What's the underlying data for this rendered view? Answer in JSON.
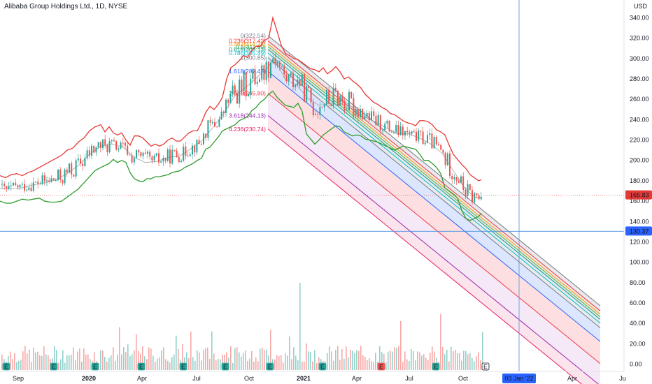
{
  "header": {
    "title": "Alibaba Group Holdings Ltd., 1D, NYSE"
  },
  "colors": {
    "price_up": "#26a69a",
    "price_down": "#ef5350",
    "upper_band": "#e53935",
    "lower_band": "#2e9b2e",
    "mid_band": "#9e9e9e",
    "crosshair": "#4a90e2",
    "price_badge": "#e53935",
    "cross_badge": "#2962ff"
  },
  "chart_data": {
    "type": "candlestick",
    "currency": "USD",
    "y_axis": {
      "range": [
        0,
        345
      ],
      "ticks": [
        "340.00",
        "320.00",
        "300.00",
        "280.00",
        "260.00",
        "240.00",
        "220.00",
        "200.00",
        "180.00",
        "160.00",
        "140.00",
        "120.00",
        "100.00",
        "80.00",
        "60.00",
        "40.00",
        "20.00",
        "0.00"
      ],
      "tick_values": [
        340,
        320,
        300,
        280,
        260,
        240,
        220,
        200,
        180,
        160,
        140,
        120,
        100,
        80,
        60,
        40,
        20,
        0
      ]
    },
    "x_axis": {
      "ticks": [
        {
          "label": "Sep",
          "bold": false
        },
        {
          "label": "2020",
          "bold": true
        },
        {
          "label": "Apr",
          "bold": false
        },
        {
          "label": "Jul",
          "bold": false
        },
        {
          "label": "Oct",
          "bold": false
        },
        {
          "label": "2021",
          "bold": true
        },
        {
          "label": "Apr",
          "bold": false
        },
        {
          "label": "Jul",
          "bold": false
        },
        {
          "label": "Oct",
          "bold": false
        },
        {
          "label": "Apr",
          "bold": false
        },
        {
          "label": "Ju",
          "bold": false
        }
      ]
    },
    "last_price": {
      "value": 165.83,
      "label": "165.83"
    },
    "crosshair": {
      "price": 130.37,
      "price_label": "130.37",
      "date_label": "03 Jan '22"
    },
    "fib_channel": {
      "start": {
        "date_index": 0,
        "price": 322.54
      },
      "end_date_index": 1,
      "levels": [
        {
          "ratio": "0",
          "price": 322.54,
          "label": "0(322.54)",
          "color": "#787b86"
        },
        {
          "ratio": "0.236",
          "price": 317.42,
          "label": "0.236(317.42)",
          "color": "#f23645"
        },
        {
          "ratio": "0.382",
          "price": 314.25,
          "label": "0.382(314.25)",
          "color": "#ff9800"
        },
        {
          "ratio": "0.5",
          "price": 311.69,
          "label": "0.5(311.69)",
          "color": "#4caf50"
        },
        {
          "ratio": "0.618",
          "price": 309.13,
          "label": "0.618(309.13)",
          "color": "#089981"
        },
        {
          "ratio": "0.786",
          "price": 305.49,
          "label": "0.786(305.49)",
          "color": "#00bcd4"
        },
        {
          "ratio": "1",
          "price": 300.85,
          "label": "1(300.85)",
          "color": "#787b86"
        },
        {
          "ratio": "1.618",
          "price": 287.47,
          "label": "1.618(287.47)",
          "color": "#2962ff"
        },
        {
          "ratio": "2.618",
          "price": 265.8,
          "label": "2.618(265.80)",
          "color": "#f23645"
        },
        {
          "ratio": "3.618",
          "price": 244.13,
          "label": "3.618(244.13)",
          "color": "#9c27b0"
        },
        {
          "ratio": "4.236",
          "price": 230.74,
          "label": "4.236(230.74)",
          "color": "#e91e63"
        }
      ]
    },
    "earnings_markers": [
      "E",
      "E",
      "E",
      "E",
      "E",
      "E",
      "E",
      "E",
      "E",
      "E",
      "E"
    ],
    "upper_band": [
      [
        0,
        185
      ],
      [
        8,
        183
      ],
      [
        16,
        186
      ],
      [
        24,
        187
      ],
      [
        32,
        185
      ],
      [
        40,
        188
      ],
      [
        48,
        190
      ],
      [
        56,
        193
      ],
      [
        64,
        196
      ],
      [
        72,
        199
      ],
      [
        80,
        202
      ],
      [
        88,
        205
      ],
      [
        96,
        210
      ],
      [
        104,
        212
      ],
      [
        112,
        218
      ],
      [
        120,
        222
      ],
      [
        128,
        229
      ],
      [
        136,
        233
      ],
      [
        144,
        235
      ],
      [
        150,
        228
      ],
      [
        156,
        233
      ],
      [
        162,
        227
      ],
      [
        168,
        225
      ],
      [
        174,
        227
      ],
      [
        180,
        220
      ],
      [
        186,
        215
      ],
      [
        192,
        224
      ],
      [
        198,
        224
      ],
      [
        204,
        222
      ],
      [
        210,
        218
      ],
      [
        216,
        214
      ],
      [
        222,
        216
      ],
      [
        228,
        214
      ],
      [
        234,
        216
      ],
      [
        240,
        220
      ],
      [
        246,
        222
      ],
      [
        252,
        219
      ],
      [
        258,
        219
      ],
      [
        264,
        223
      ],
      [
        270,
        227
      ],
      [
        276,
        229
      ],
      [
        282,
        229
      ],
      [
        288,
        237
      ],
      [
        294,
        247
      ],
      [
        300,
        253
      ],
      [
        306,
        250
      ],
      [
        312,
        255
      ],
      [
        318,
        262
      ],
      [
        324,
        280
      ],
      [
        330,
        291
      ],
      [
        336,
        294
      ],
      [
        342,
        298
      ],
      [
        348,
        303
      ],
      [
        354,
        301
      ],
      [
        360,
        308
      ],
      [
        366,
        312
      ],
      [
        372,
        312
      ],
      [
        378,
        318
      ],
      [
        384,
        320
      ],
      [
        390,
        340
      ],
      [
        396,
        327
      ],
      [
        402,
        313
      ],
      [
        408,
        305
      ],
      [
        414,
        303
      ],
      [
        420,
        300
      ],
      [
        426,
        299
      ],
      [
        432,
        296
      ],
      [
        438,
        293
      ],
      [
        444,
        290
      ],
      [
        450,
        289
      ],
      [
        456,
        287
      ],
      [
        462,
        291
      ],
      [
        468,
        285
      ],
      [
        474,
        288
      ],
      [
        480,
        292
      ],
      [
        486,
        287
      ],
      [
        492,
        280
      ],
      [
        498,
        282
      ],
      [
        504,
        278
      ],
      [
        510,
        275
      ],
      [
        516,
        271
      ],
      [
        522,
        265
      ],
      [
        528,
        261
      ],
      [
        534,
        257
      ],
      [
        540,
        255
      ],
      [
        546,
        252
      ],
      [
        552,
        250
      ],
      [
        558,
        246
      ],
      [
        564,
        245
      ],
      [
        570,
        242
      ],
      [
        576,
        239
      ],
      [
        582,
        237
      ],
      [
        588,
        236
      ],
      [
        594,
        234
      ],
      [
        600,
        239
      ],
      [
        606,
        239
      ],
      [
        612,
        238
      ],
      [
        618,
        235
      ],
      [
        624,
        230
      ],
      [
        630,
        228
      ],
      [
        636,
        225
      ],
      [
        642,
        215
      ],
      [
        648,
        206
      ],
      [
        654,
        201
      ],
      [
        660,
        196
      ],
      [
        666,
        192
      ],
      [
        672,
        186
      ],
      [
        678,
        183
      ],
      [
        684,
        180
      ],
      [
        688,
        181
      ]
    ],
    "lower_band": [
      [
        0,
        160
      ],
      [
        8,
        158
      ],
      [
        16,
        158
      ],
      [
        24,
        160
      ],
      [
        32,
        162
      ],
      [
        40,
        161
      ],
      [
        48,
        162
      ],
      [
        56,
        163
      ],
      [
        64,
        160
      ],
      [
        72,
        159
      ],
      [
        80,
        159
      ],
      [
        88,
        160
      ],
      [
        96,
        164
      ],
      [
        104,
        168
      ],
      [
        112,
        172
      ],
      [
        120,
        178
      ],
      [
        128,
        184
      ],
      [
        136,
        190
      ],
      [
        144,
        193
      ],
      [
        150,
        195
      ],
      [
        156,
        197
      ],
      [
        162,
        201
      ],
      [
        168,
        198
      ],
      [
        174,
        200
      ],
      [
        180,
        198
      ],
      [
        186,
        188
      ],
      [
        192,
        182
      ],
      [
        198,
        180
      ],
      [
        204,
        179
      ],
      [
        210,
        182
      ],
      [
        216,
        182
      ],
      [
        222,
        184
      ],
      [
        228,
        184
      ],
      [
        234,
        185
      ],
      [
        240,
        186
      ],
      [
        246,
        188
      ],
      [
        252,
        189
      ],
      [
        258,
        190
      ],
      [
        264,
        193
      ],
      [
        270,
        195
      ],
      [
        276,
        197
      ],
      [
        282,
        200
      ],
      [
        288,
        202
      ],
      [
        294,
        211
      ],
      [
        300,
        213
      ],
      [
        306,
        218
      ],
      [
        312,
        223
      ],
      [
        318,
        229
      ],
      [
        324,
        231
      ],
      [
        330,
        233
      ],
      [
        336,
        235
      ],
      [
        342,
        239
      ],
      [
        348,
        241
      ],
      [
        354,
        243
      ],
      [
        360,
        249
      ],
      [
        366,
        252
      ],
      [
        372,
        257
      ],
      [
        378,
        260
      ],
      [
        384,
        265
      ],
      [
        390,
        268
      ],
      [
        396,
        262
      ],
      [
        402,
        258
      ],
      [
        408,
        254
      ],
      [
        414,
        253
      ],
      [
        420,
        252
      ],
      [
        426,
        256
      ],
      [
        432,
        248
      ],
      [
        438,
        226
      ],
      [
        444,
        221
      ],
      [
        450,
        216
      ],
      [
        456,
        220
      ],
      [
        462,
        225
      ],
      [
        468,
        228
      ],
      [
        474,
        231
      ],
      [
        480,
        234
      ],
      [
        486,
        233
      ],
      [
        492,
        228
      ],
      [
        498,
        226
      ],
      [
        504,
        224
      ],
      [
        510,
        225
      ],
      [
        516,
        224
      ],
      [
        522,
        221
      ],
      [
        528,
        220
      ],
      [
        534,
        219
      ],
      [
        540,
        218
      ],
      [
        546,
        216
      ],
      [
        552,
        214
      ],
      [
        558,
        212
      ],
      [
        564,
        210
      ],
      [
        570,
        212
      ],
      [
        576,
        214
      ],
      [
        582,
        213
      ],
      [
        588,
        212
      ],
      [
        594,
        211
      ],
      [
        600,
        206
      ],
      [
        606,
        200
      ],
      [
        612,
        200
      ],
      [
        618,
        197
      ],
      [
        624,
        193
      ],
      [
        630,
        187
      ],
      [
        636,
        173
      ],
      [
        642,
        170
      ],
      [
        648,
        167
      ],
      [
        654,
        163
      ],
      [
        660,
        151
      ],
      [
        666,
        143
      ],
      [
        672,
        141
      ],
      [
        678,
        143
      ],
      [
        684,
        145
      ],
      [
        688,
        148
      ]
    ],
    "mid_band": [
      [
        0,
        172
      ],
      [
        16,
        172
      ],
      [
        32,
        173
      ],
      [
        48,
        176
      ],
      [
        64,
        178
      ],
      [
        80,
        181
      ],
      [
        96,
        187
      ],
      [
        112,
        195
      ],
      [
        128,
        206
      ],
      [
        144,
        214
      ],
      [
        160,
        216
      ],
      [
        176,
        213
      ],
      [
        192,
        203
      ],
      [
        208,
        198
      ],
      [
        224,
        199
      ],
      [
        240,
        203
      ],
      [
        256,
        204
      ],
      [
        272,
        211
      ],
      [
        288,
        219
      ],
      [
        304,
        232
      ],
      [
        320,
        246
      ],
      [
        336,
        264
      ],
      [
        352,
        272
      ],
      [
        368,
        282
      ],
      [
        384,
        292
      ],
      [
        392,
        301
      ],
      [
        408,
        279
      ],
      [
        424,
        274
      ],
      [
        440,
        261
      ],
      [
        456,
        254
      ],
      [
        472,
        256
      ],
      [
        488,
        260
      ],
      [
        504,
        252
      ],
      [
        520,
        243
      ],
      [
        536,
        238
      ],
      [
        552,
        232
      ],
      [
        568,
        226
      ],
      [
        584,
        226
      ],
      [
        600,
        222
      ],
      [
        616,
        216
      ],
      [
        632,
        207
      ],
      [
        648,
        190
      ],
      [
        664,
        173
      ],
      [
        680,
        163
      ],
      [
        688,
        164
      ]
    ],
    "volume_note": "daily volume histogram (relative)"
  }
}
